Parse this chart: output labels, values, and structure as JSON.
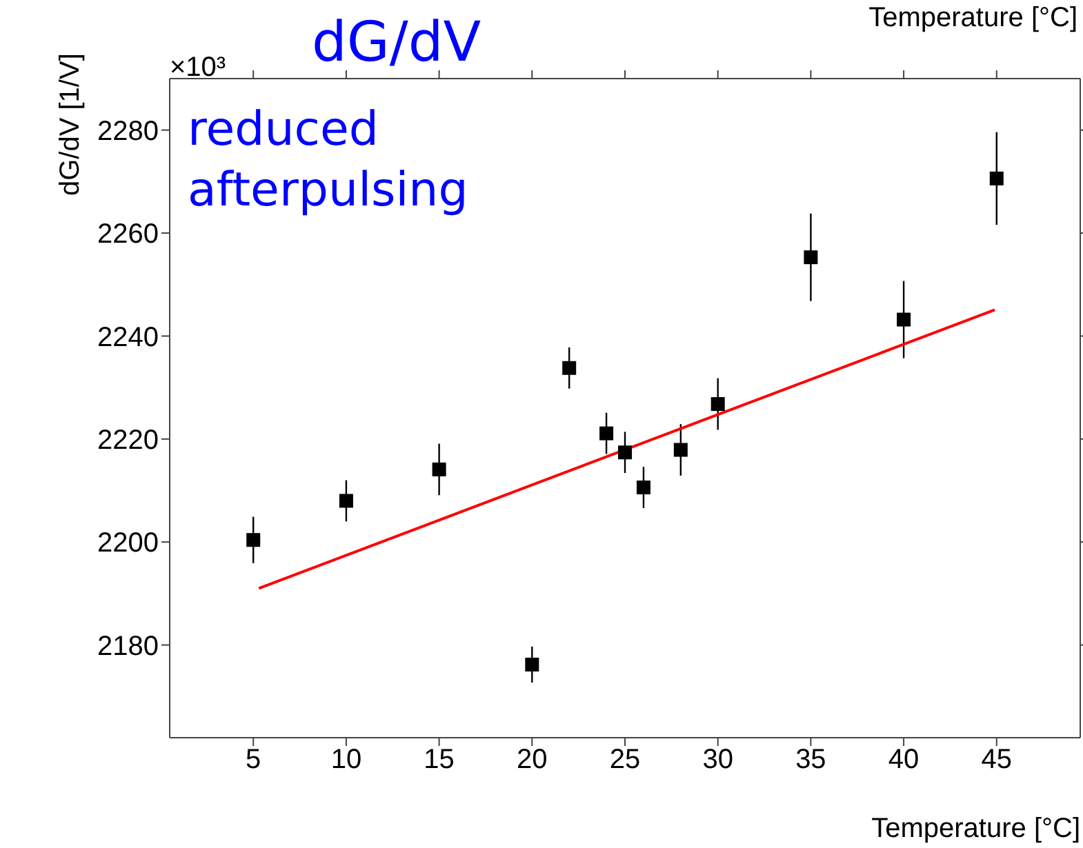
{
  "chart_data": {
    "type": "scatter",
    "title": "dG/dV",
    "xlabel": "Temperature [°C]",
    "ylabel": "dG/dV [1/V]",
    "annotations": [
      "×10³",
      "reduced afterpulsing",
      "Temperature [°C]"
    ],
    "xlim": [
      0.5,
      49.5
    ],
    "xticks": [
      5,
      10,
      15,
      20,
      25,
      30,
      35,
      40,
      45
    ],
    "ylim": [
      2162,
      2290
    ],
    "yticks": [
      2180,
      2200,
      2220,
      2240,
      2260,
      2280
    ],
    "grid": false,
    "legend": false,
    "series": [
      {
        "marker": "square",
        "color": "#000000",
        "x": [
          5,
          10,
          15,
          20,
          22,
          24,
          25,
          26,
          28,
          30,
          35,
          40,
          45
        ],
        "values": [
          2200.4,
          2208.0,
          2214.1,
          2176.2,
          2233.8,
          2221.1,
          2217.4,
          2210.6,
          2217.9,
          2226.8,
          2255.3,
          2243.2,
          2270.6
        ],
        "errors": [
          4.5,
          4,
          5,
          3.5,
          4,
          4,
          4,
          4,
          5,
          5,
          8.5,
          7.5,
          9
        ]
      },
      {
        "type": "line",
        "color": "#ff0000",
        "x": [
          5.3,
          44.9
        ],
        "values": [
          2191.0,
          2245.1
        ]
      }
    ]
  }
}
